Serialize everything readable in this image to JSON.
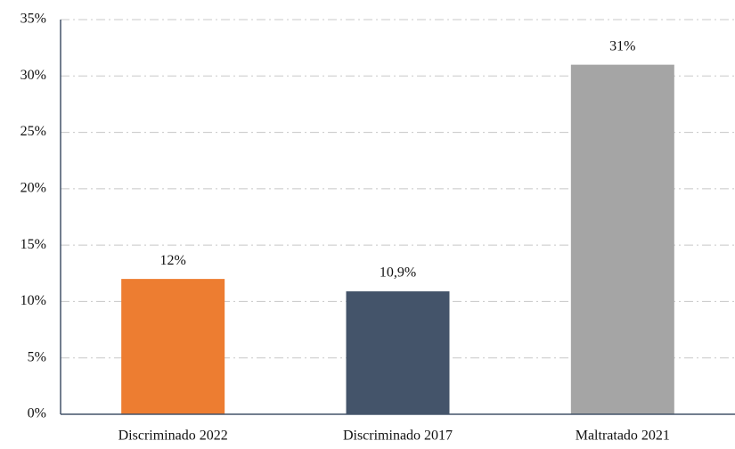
{
  "chart_data": {
    "type": "bar",
    "categories": [
      "Discriminado 2022",
      "Discriminado 2017",
      "Maltratado 2021"
    ],
    "values": [
      12,
      10.9,
      31
    ],
    "value_labels": [
      "12%",
      "10,9%",
      "31%"
    ],
    "colors": [
      "#ed7d31",
      "#44546a",
      "#a5a5a5"
    ],
    "ylim": [
      0,
      35
    ],
    "yticks": [
      {
        "value": 0,
        "label": "0%"
      },
      {
        "value": 5,
        "label": "5%"
      },
      {
        "value": 10,
        "label": "10%"
      },
      {
        "value": 15,
        "label": "15%"
      },
      {
        "value": 20,
        "label": "20%"
      },
      {
        "value": 25,
        "label": "25%"
      },
      {
        "value": 30,
        "label": "30%"
      },
      {
        "value": 35,
        "label": "35%"
      }
    ],
    "grid": true
  }
}
